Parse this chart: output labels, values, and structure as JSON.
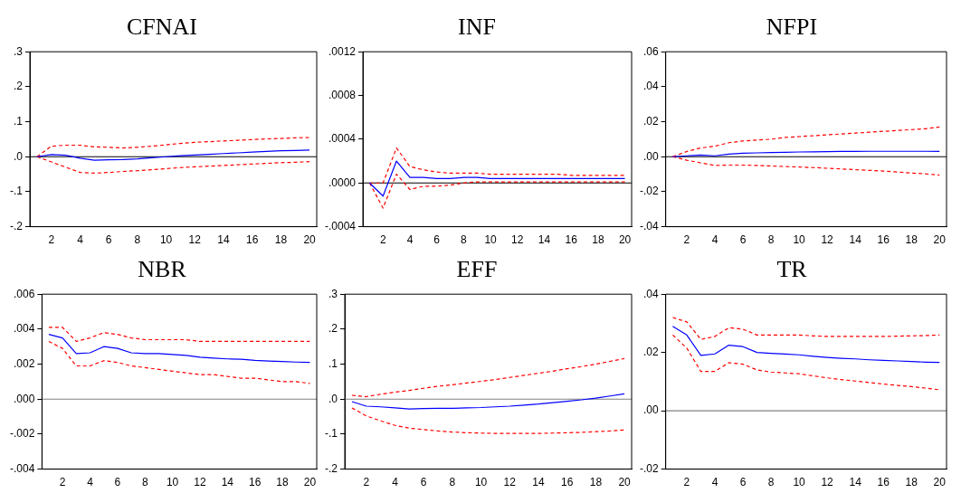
{
  "chart_data": [
    {
      "type": "line",
      "title": "CFNAI",
      "x": [
        1,
        2,
        3,
        4,
        5,
        6,
        7,
        8,
        9,
        10,
        11,
        12,
        13,
        14,
        15,
        16,
        17,
        18,
        19,
        20
      ],
      "xlim": [
        0.5,
        20.5
      ],
      "xticks": [
        2,
        4,
        6,
        8,
        10,
        12,
        14,
        16,
        18,
        20
      ],
      "ylim": [
        -0.2,
        0.3
      ],
      "yticks": [
        {
          "value": -0.2,
          "label": "-.2"
        },
        {
          "value": -0.1,
          "label": "-.1"
        },
        {
          "value": 0,
          "label": ".0"
        },
        {
          "value": 0.1,
          "label": ".1"
        },
        {
          "value": 0.2,
          "label": ".2"
        },
        {
          "value": 0.3,
          "label": ".3"
        }
      ],
      "ref_lines": [
        {
          "axis": "y",
          "value": 0,
          "color": "#000000"
        }
      ],
      "series": [
        {
          "color": "#0000ff",
          "line_style": "solid",
          "values": [
            0,
            0.006,
            0.004,
            -0.004,
            -0.01,
            -0.009,
            -0.008,
            -0.006,
            -0.003,
            0,
            0.003,
            0.005,
            0.007,
            0.009,
            0.011,
            0.013,
            0.015,
            0.017,
            0.018,
            0.019
          ]
        },
        {
          "color": "#ff0000",
          "line_style": "dashed",
          "values": [
            0,
            0.03,
            0.033,
            0.033,
            0.028,
            0.027,
            0.025,
            0.027,
            0.03,
            0.034,
            0.038,
            0.041,
            0.043,
            0.045,
            0.047,
            0.049,
            0.051,
            0.052,
            0.054,
            0.055
          ]
        },
        {
          "color": "#ff0000",
          "line_style": "dashed",
          "values": [
            0,
            -0.015,
            -0.03,
            -0.045,
            -0.047,
            -0.045,
            -0.042,
            -0.04,
            -0.037,
            -0.034,
            -0.031,
            -0.029,
            -0.027,
            -0.025,
            -0.023,
            -0.021,
            -0.019,
            -0.017,
            -0.016,
            -0.014
          ]
        }
      ]
    },
    {
      "type": "line",
      "title": "INF",
      "x": [
        1,
        2,
        3,
        4,
        5,
        6,
        7,
        8,
        9,
        10,
        11,
        12,
        13,
        14,
        15,
        16,
        17,
        18,
        19,
        20
      ],
      "xlim": [
        0.5,
        20.5
      ],
      "xticks": [
        2,
        4,
        6,
        8,
        10,
        12,
        14,
        16,
        18,
        20
      ],
      "ylim": [
        -0.0004,
        0.0012
      ],
      "yticks": [
        {
          "value": -0.0004,
          "label": "-.0004"
        },
        {
          "value": 0,
          "label": ".0000"
        },
        {
          "value": 0.0004,
          "label": ".0004"
        },
        {
          "value": 0.0008,
          "label": ".0008"
        },
        {
          "value": 0.0012,
          "label": ".0012"
        }
      ],
      "ref_lines": [
        {
          "axis": "y",
          "value": 0,
          "color": "#000000"
        }
      ],
      "series": [
        {
          "color": "#0000ff",
          "line_style": "solid",
          "values": [
            0,
            -0.00012,
            0.0002,
            5e-05,
            5e-05,
            4e-05,
            4e-05,
            5e-05,
            5e-05,
            4e-05,
            4e-05,
            4e-05,
            4e-05,
            4e-05,
            4e-05,
            4e-05,
            4e-05,
            4e-05,
            4e-05,
            4e-05
          ]
        },
        {
          "color": "#ff0000",
          "line_style": "dashed",
          "values": [
            0,
            0,
            0.00032,
            0.00015,
            0.00012,
            0.0001,
            9e-05,
            9e-05,
            9e-05,
            8e-05,
            8e-05,
            8e-05,
            8e-05,
            8e-05,
            8e-05,
            7e-05,
            7e-05,
            7e-05,
            7e-05,
            7e-05
          ]
        },
        {
          "color": "#ff0000",
          "line_style": "dashed",
          "values": [
            0,
            -0.00023,
            8e-05,
            -6e-05,
            -3e-05,
            -3e-05,
            -2e-05,
            0,
            1e-05,
            1e-05,
            1e-05,
            1e-05,
            1e-05,
            1e-05,
            1e-05,
            1e-05,
            1e-05,
            1e-05,
            1e-05,
            1e-05
          ]
        }
      ]
    },
    {
      "type": "line",
      "title": "NFPI",
      "x": [
        1,
        2,
        3,
        4,
        5,
        6,
        7,
        8,
        9,
        10,
        11,
        12,
        13,
        14,
        15,
        16,
        17,
        18,
        19,
        20
      ],
      "xlim": [
        0.5,
        20.5
      ],
      "xticks": [
        2,
        4,
        6,
        8,
        10,
        12,
        14,
        16,
        18,
        20
      ],
      "ylim": [
        -0.04,
        0.06
      ],
      "yticks": [
        {
          "value": -0.04,
          "label": "-.04"
        },
        {
          "value": -0.02,
          "label": "-.02"
        },
        {
          "value": 0,
          "label": ".00"
        },
        {
          "value": 0.02,
          "label": ".02"
        },
        {
          "value": 0.04,
          "label": ".04"
        },
        {
          "value": 0.06,
          "label": ".06"
        }
      ],
      "ref_lines": [
        {
          "axis": "y",
          "value": 0,
          "color": "#000000"
        }
      ],
      "series": [
        {
          "color": "#0000ff",
          "line_style": "solid",
          "values": [
            0,
            0.0005,
            0.001,
            0.0005,
            0.0015,
            0.002,
            0.0022,
            0.0024,
            0.0025,
            0.0027,
            0.0028,
            0.0029,
            0.003,
            0.003,
            0.0031,
            0.0031,
            0.0031,
            0.0031,
            0.0031,
            0.003
          ]
        },
        {
          "color": "#ff0000",
          "line_style": "dashed",
          "values": [
            0,
            0.003,
            0.005,
            0.006,
            0.008,
            0.009,
            0.0095,
            0.01,
            0.011,
            0.0115,
            0.012,
            0.0125,
            0.013,
            0.0135,
            0.014,
            0.0145,
            0.015,
            0.0155,
            0.016,
            0.017
          ]
        },
        {
          "color": "#ff0000",
          "line_style": "dashed",
          "values": [
            0,
            -0.002,
            -0.0035,
            -0.005,
            -0.0048,
            -0.0048,
            -0.005,
            -0.0053,
            -0.0056,
            -0.0059,
            -0.0062,
            -0.0066,
            -0.007,
            -0.0074,
            -0.0078,
            -0.0082,
            -0.0087,
            -0.0093,
            -0.0098,
            -0.0105
          ]
        }
      ]
    },
    {
      "type": "line",
      "title": "NBR",
      "x": [
        1,
        2,
        3,
        4,
        5,
        6,
        7,
        8,
        9,
        10,
        11,
        12,
        13,
        14,
        15,
        16,
        17,
        18,
        19,
        20
      ],
      "xlim": [
        0.5,
        20.5
      ],
      "xticks": [
        2,
        4,
        6,
        8,
        10,
        12,
        14,
        16,
        18,
        20
      ],
      "ylim": [
        -0.004,
        0.006
      ],
      "yticks": [
        {
          "value": -0.004,
          "label": "-.004"
        },
        {
          "value": -0.002,
          "label": "-.002"
        },
        {
          "value": 0,
          "label": ".000"
        },
        {
          "value": 0.002,
          "label": ".002"
        },
        {
          "value": 0.004,
          "label": ".004"
        },
        {
          "value": 0.006,
          "label": ".006"
        }
      ],
      "ref_lines": [
        {
          "axis": "y",
          "value": 0,
          "color": "#808080"
        }
      ],
      "series": [
        {
          "color": "#0000ff",
          "line_style": "solid",
          "values": [
            0.0037,
            0.0035,
            0.0026,
            0.00265,
            0.003,
            0.0029,
            0.00265,
            0.0026,
            0.0026,
            0.00255,
            0.0025,
            0.0024,
            0.00235,
            0.0023,
            0.00228,
            0.00222,
            0.00218,
            0.00215,
            0.00212,
            0.0021
          ]
        },
        {
          "color": "#ff0000",
          "line_style": "dashed",
          "values": [
            0.0041,
            0.0041,
            0.0033,
            0.0035,
            0.0038,
            0.0037,
            0.0035,
            0.0034,
            0.0034,
            0.0034,
            0.0034,
            0.0033,
            0.0033,
            0.0033,
            0.0033,
            0.0033,
            0.0033,
            0.0033,
            0.0033,
            0.0033
          ]
        },
        {
          "color": "#ff0000",
          "line_style": "dashed",
          "values": [
            0.0033,
            0.0029,
            0.0019,
            0.0019,
            0.0022,
            0.0021,
            0.0019,
            0.0018,
            0.0017,
            0.0016,
            0.0015,
            0.0014,
            0.0014,
            0.0013,
            0.0012,
            0.0012,
            0.0011,
            0.001,
            0.001,
            0.0009
          ]
        }
      ]
    },
    {
      "type": "line",
      "title": "EFF",
      "x": [
        1,
        2,
        3,
        4,
        5,
        6,
        7,
        8,
        9,
        10,
        11,
        12,
        13,
        14,
        15,
        16,
        17,
        18,
        19,
        20
      ],
      "xlim": [
        0.5,
        20.5
      ],
      "xticks": [
        2,
        4,
        6,
        8,
        10,
        12,
        14,
        16,
        18,
        20
      ],
      "ylim": [
        -0.2,
        0.3
      ],
      "yticks": [
        {
          "value": -0.2,
          "label": "-.2"
        },
        {
          "value": -0.1,
          "label": "-.1"
        },
        {
          "value": 0,
          "label": ".0"
        },
        {
          "value": 0.1,
          "label": ".1"
        },
        {
          "value": 0.2,
          "label": ".2"
        },
        {
          "value": 0.3,
          "label": ".3"
        }
      ],
      "ref_lines": [
        {
          "axis": "y",
          "value": 0,
          "color": "#808080"
        }
      ],
      "series": [
        {
          "color": "#0000ff",
          "line_style": "solid",
          "values": [
            -0.007,
            -0.02,
            -0.022,
            -0.025,
            -0.028,
            -0.027,
            -0.026,
            -0.026,
            -0.025,
            -0.024,
            -0.022,
            -0.02,
            -0.017,
            -0.014,
            -0.01,
            -0.006,
            -0.002,
            0.003,
            0.009,
            0.015
          ]
        },
        {
          "color": "#ff0000",
          "line_style": "dashed",
          "values": [
            0.011,
            0.007,
            0.014,
            0.02,
            0.025,
            0.031,
            0.037,
            0.041,
            0.046,
            0.051,
            0.056,
            0.062,
            0.068,
            0.074,
            0.08,
            0.087,
            0.093,
            0.1,
            0.108,
            0.116
          ]
        },
        {
          "color": "#ff0000",
          "line_style": "dashed",
          "values": [
            -0.025,
            -0.048,
            -0.062,
            -0.075,
            -0.083,
            -0.087,
            -0.091,
            -0.094,
            -0.096,
            -0.097,
            -0.098,
            -0.098,
            -0.098,
            -0.098,
            -0.097,
            -0.096,
            -0.095,
            -0.093,
            -0.091,
            -0.088
          ]
        }
      ]
    },
    {
      "type": "line",
      "title": "TR",
      "x": [
        1,
        2,
        3,
        4,
        5,
        6,
        7,
        8,
        9,
        10,
        11,
        12,
        13,
        14,
        15,
        16,
        17,
        18,
        19,
        20
      ],
      "xlim": [
        0.5,
        20.5
      ],
      "xticks": [
        2,
        4,
        6,
        8,
        10,
        12,
        14,
        16,
        18,
        20
      ],
      "ylim": [
        -0.02,
        0.04
      ],
      "yticks": [
        {
          "value": -0.02,
          "label": "-.02"
        },
        {
          "value": 0,
          "label": ".00"
        },
        {
          "value": 0.02,
          "label": ".02"
        },
        {
          "value": 0.04,
          "label": ".04"
        }
      ],
      "ref_lines": [
        {
          "axis": "y",
          "value": 0,
          "color": "#808080"
        }
      ],
      "series": [
        {
          "color": "#0000ff",
          "line_style": "solid",
          "values": [
            0.029,
            0.026,
            0.019,
            0.0195,
            0.0225,
            0.022,
            0.02,
            0.0197,
            0.0195,
            0.0192,
            0.0187,
            0.0183,
            0.018,
            0.0178,
            0.0175,
            0.0173,
            0.0171,
            0.0169,
            0.0167,
            0.0166
          ]
        },
        {
          "color": "#ff0000",
          "line_style": "dashed",
          "values": [
            0.032,
            0.0305,
            0.0245,
            0.0255,
            0.0285,
            0.028,
            0.026,
            0.026,
            0.026,
            0.026,
            0.0257,
            0.0255,
            0.0255,
            0.0255,
            0.0255,
            0.0255,
            0.0256,
            0.0257,
            0.0258,
            0.026
          ]
        },
        {
          "color": "#ff0000",
          "line_style": "dashed",
          "values": [
            0.026,
            0.0215,
            0.0135,
            0.0135,
            0.0165,
            0.016,
            0.014,
            0.0133,
            0.013,
            0.0127,
            0.012,
            0.0113,
            0.0107,
            0.0102,
            0.0097,
            0.0092,
            0.0087,
            0.0083,
            0.0078,
            0.0072
          ]
        }
      ]
    }
  ]
}
